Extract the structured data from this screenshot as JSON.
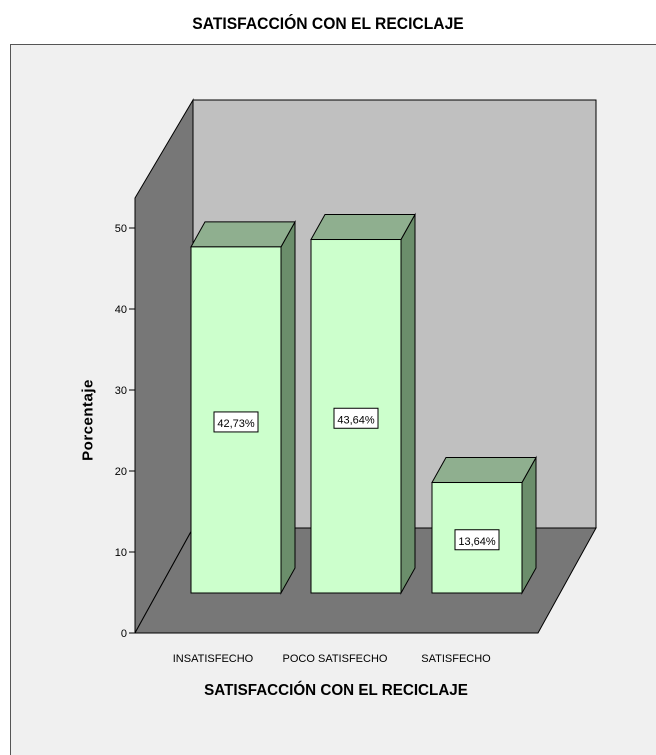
{
  "chart_data": {
    "type": "bar",
    "title": "SATISFACCIÓN CON EL RECICLAJE",
    "xlabel": "SATISFACCIÓN CON EL RECICLAJE",
    "ylabel": "Porcentaje",
    "categories": [
      "INSATISFECHO",
      "POCO SATISFECHO",
      "SATISFECHO"
    ],
    "values": [
      42.73,
      43.64,
      13.64
    ],
    "data_labels": [
      "42,73%",
      "43,64%",
      "13,64%"
    ],
    "ylim": [
      0,
      50
    ],
    "yticks": [
      "0",
      "10",
      "20",
      "30",
      "40",
      "50"
    ],
    "style": "3d",
    "colors": {
      "bar_front": "#ccffcc",
      "bar_top": "#8faf8f",
      "bar_side": "#6b8e6b",
      "back_wall": "#c0c0c0",
      "side_wall": "#777777",
      "floor": "#777777"
    }
  }
}
